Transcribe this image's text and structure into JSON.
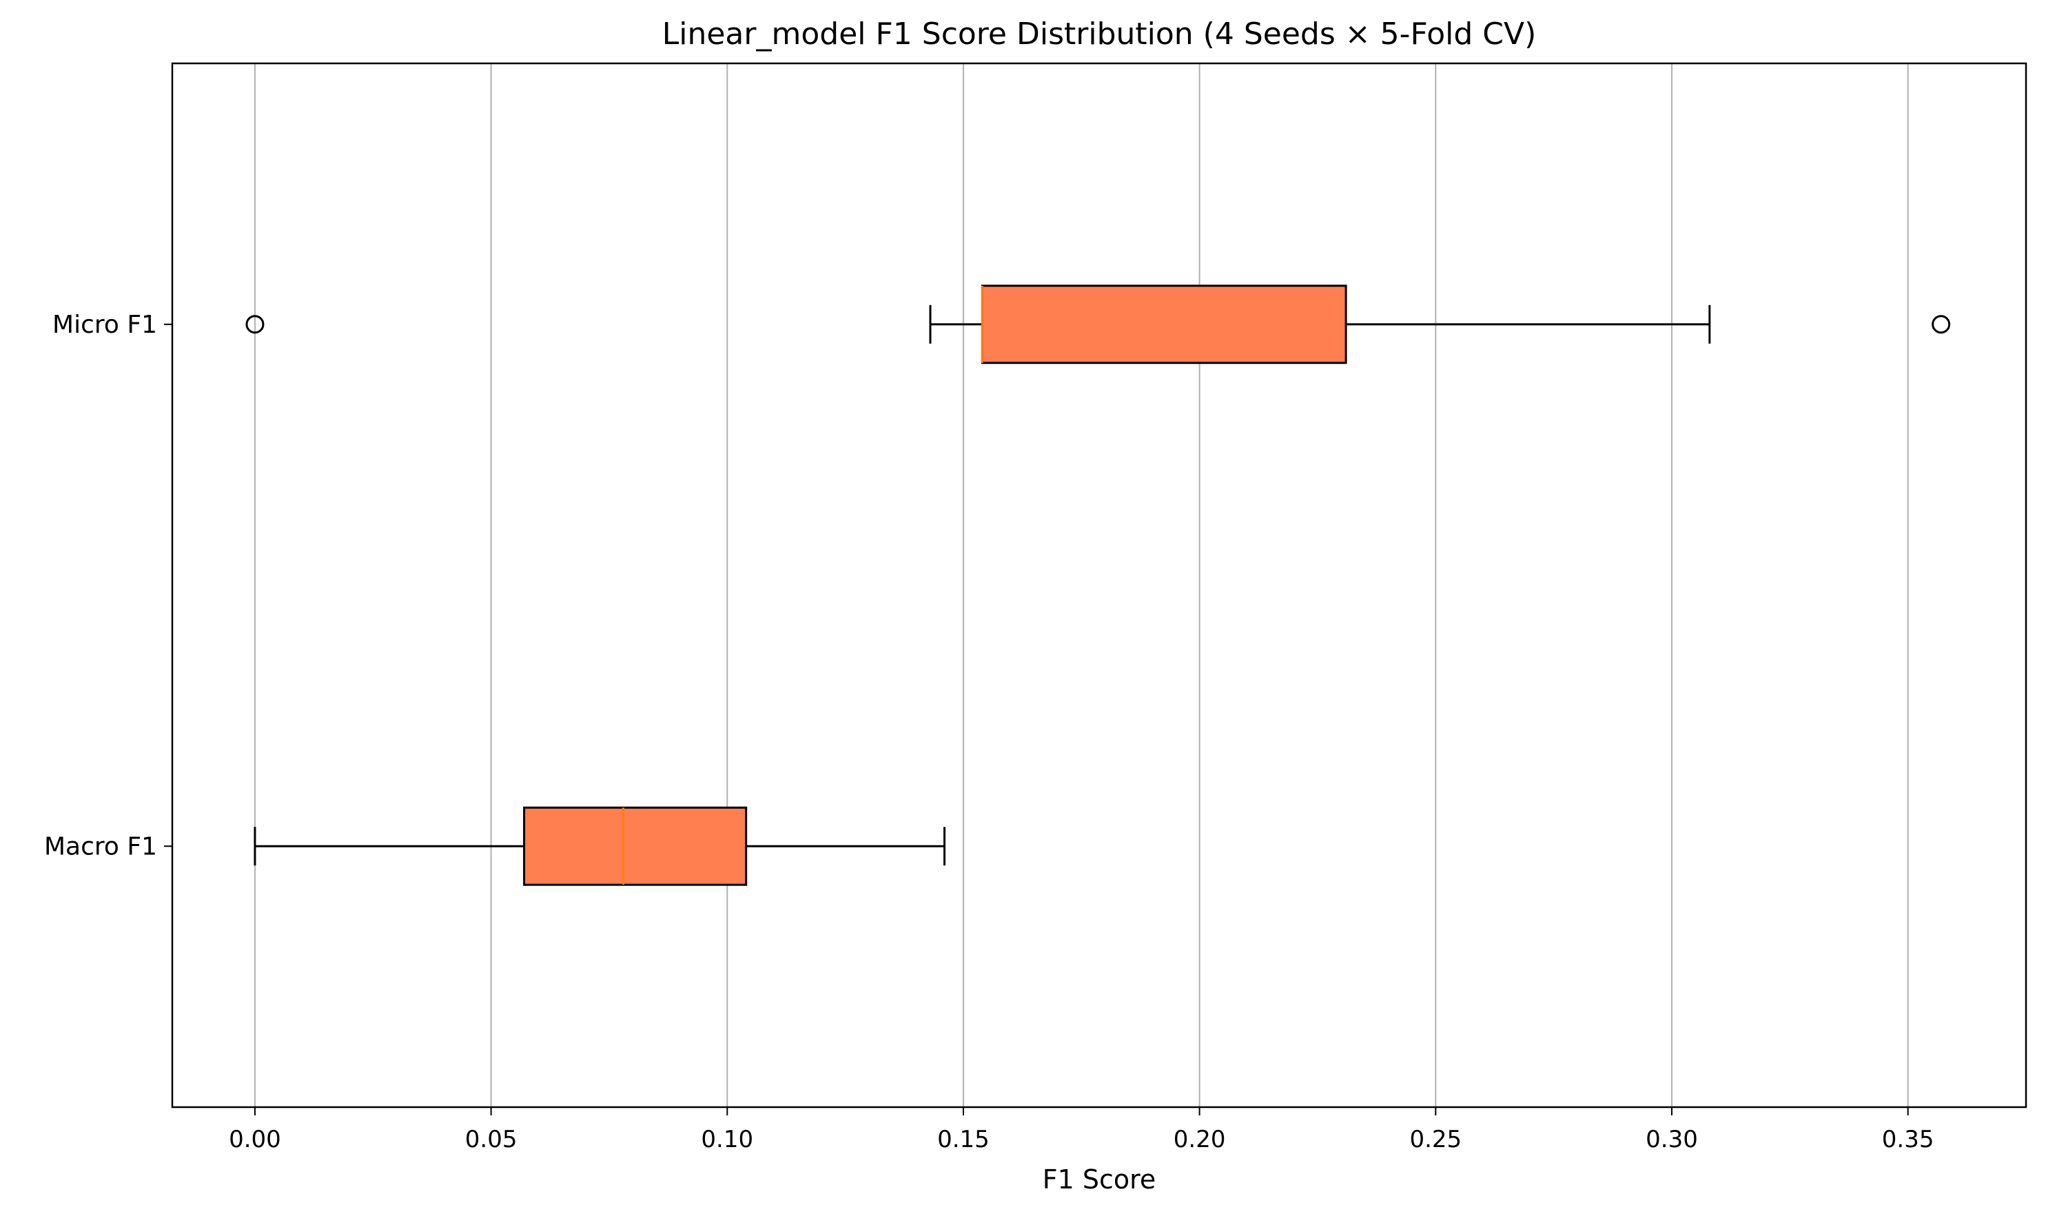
{
  "chart_data": {
    "type": "boxplot",
    "orientation": "horizontal",
    "title": "Linear_model F1 Score Distribution (4 Seeds × 5-Fold CV)",
    "xlabel": "F1 Score",
    "ylabel": "",
    "xlim": [
      -0.0175,
      0.375
    ],
    "xticks": [
      0.0,
      0.05,
      0.1,
      0.15,
      0.2,
      0.25,
      0.3,
      0.35
    ],
    "xtick_labels": [
      "0.00",
      "0.05",
      "0.10",
      "0.15",
      "0.20",
      "0.25",
      "0.30",
      "0.35"
    ],
    "grid": "x",
    "box_color": "#ff7f50",
    "median_color": "#ff7f0e",
    "categories": [
      "Micro F1",
      "Macro F1"
    ],
    "series": [
      {
        "category": "Micro F1",
        "whisker_low": 0.143,
        "q1": 0.154,
        "median": 0.154,
        "q3": 0.231,
        "whisker_high": 0.308,
        "outliers": [
          0.0,
          0.357
        ]
      },
      {
        "category": "Macro F1",
        "whisker_low": 0.0,
        "q1": 0.057,
        "median": 0.078,
        "q3": 0.104,
        "whisker_high": 0.146,
        "outliers": []
      }
    ]
  }
}
